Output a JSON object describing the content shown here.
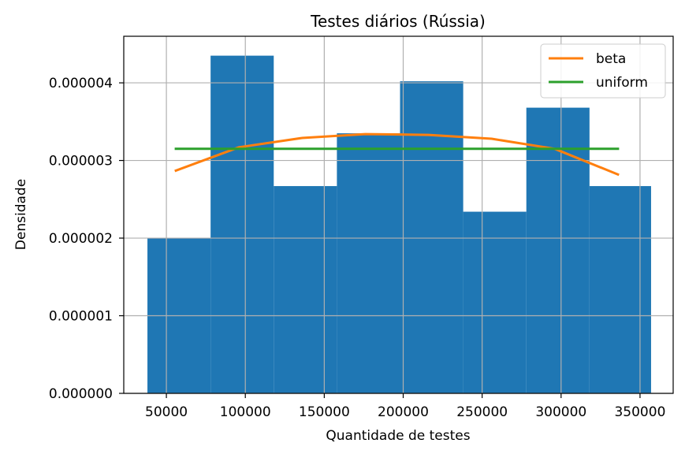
{
  "chart_data": {
    "type": "bar",
    "title": "Testes diários (Rússia)",
    "xlabel": "Quantidade de testes",
    "ylabel": "Densidade",
    "xlim": [
      23000,
      371000
    ],
    "ylim": [
      0,
      4.6e-06
    ],
    "grid": true,
    "legend_position": "top-right",
    "xticks": [
      {
        "value": 50000,
        "label": "50000"
      },
      {
        "value": 100000,
        "label": "100000"
      },
      {
        "value": 150000,
        "label": "150000"
      },
      {
        "value": 200000,
        "label": "200000"
      },
      {
        "value": 250000,
        "label": "250000"
      },
      {
        "value": 300000,
        "label": "300000"
      },
      {
        "value": 350000,
        "label": "350000"
      }
    ],
    "yticks": [
      {
        "value": 0,
        "label": "0.000000"
      },
      {
        "value": 1e-06,
        "label": "0.000001"
      },
      {
        "value": 2e-06,
        "label": "0.000002"
      },
      {
        "value": 3e-06,
        "label": "0.000003"
      },
      {
        "value": 4e-06,
        "label": "0.000004"
      }
    ],
    "histogram": {
      "color": "#1f77b4",
      "bins": [
        {
          "x0": 38000,
          "x1": 78000,
          "density": 2e-06
        },
        {
          "x0": 78000,
          "x1": 118000,
          "density": 4.35e-06
        },
        {
          "x0": 118000,
          "x1": 158000,
          "density": 2.67e-06
        },
        {
          "x0": 158000,
          "x1": 198000,
          "density": 3.35e-06
        },
        {
          "x0": 198000,
          "x1": 238000,
          "density": 4.02e-06
        },
        {
          "x0": 238000,
          "x1": 278000,
          "density": 2.34e-06
        },
        {
          "x0": 278000,
          "x1": 318000,
          "density": 3.68e-06
        },
        {
          "x0": 318000,
          "x1": 357000,
          "density": 2.67e-06
        }
      ]
    },
    "series": [
      {
        "name": "beta",
        "type": "line",
        "color": "#ff7f0e",
        "x": [
          56000,
          96000,
          136000,
          176000,
          216000,
          256000,
          296000,
          336000
        ],
        "y": [
          2.87e-06,
          3.17e-06,
          3.29e-06,
          3.34e-06,
          3.33e-06,
          3.28e-06,
          3.15e-06,
          2.82e-06
        ]
      },
      {
        "name": "uniform",
        "type": "line",
        "color": "#2ca02c",
        "x": [
          56000,
          336000
        ],
        "y": [
          3.15e-06,
          3.15e-06
        ]
      }
    ]
  }
}
